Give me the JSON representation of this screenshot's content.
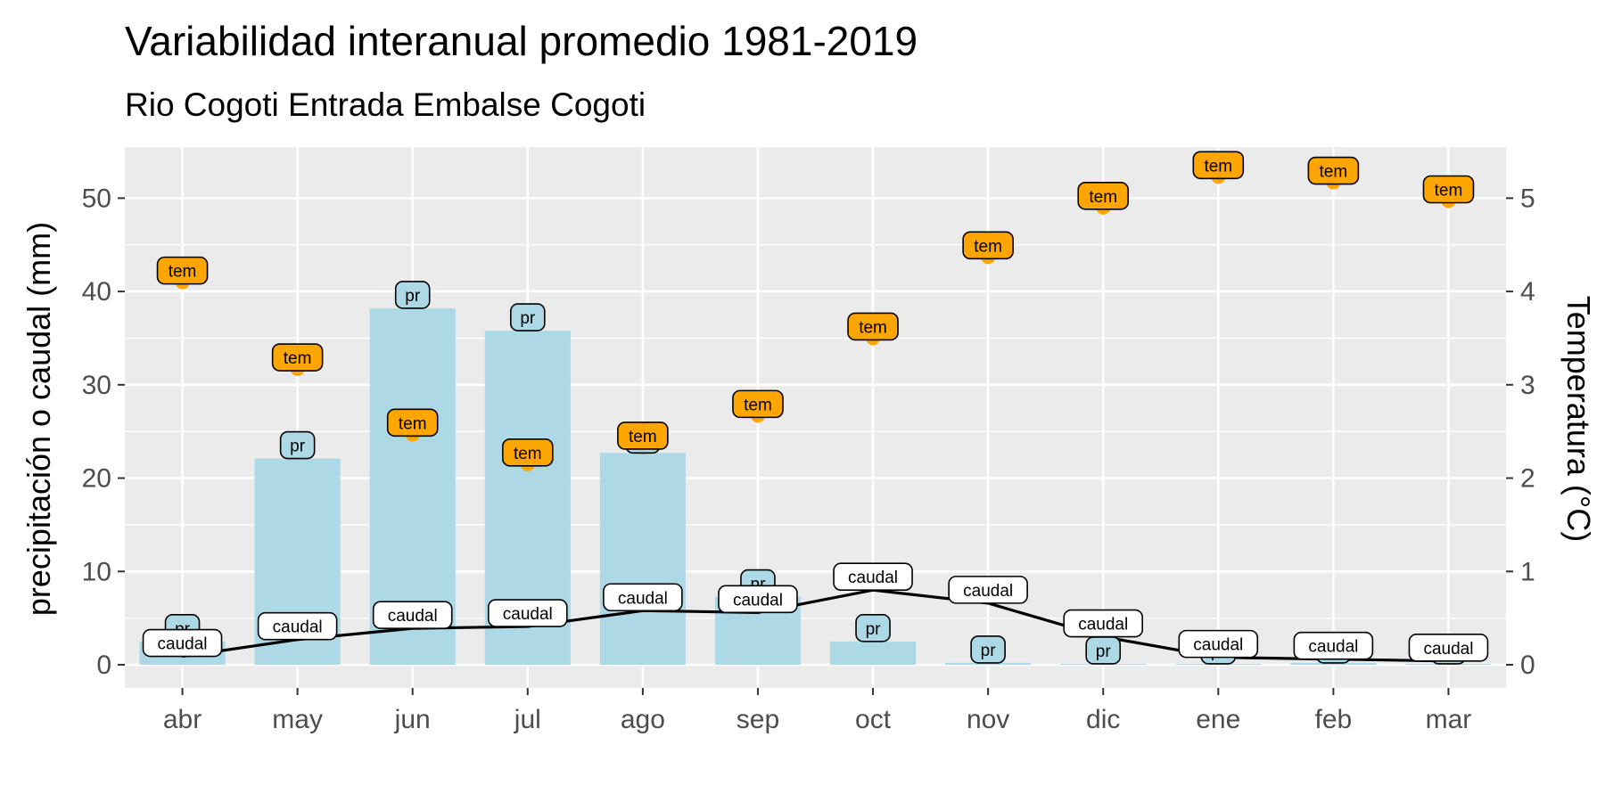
{
  "chart_data": {
    "type": "bar",
    "title": "Variabilidad interanual promedio 1981-2019",
    "subtitle": "Rio Cogoti Entrada Embalse Cogoti",
    "ylabel": "precipitación o caudal (mm)",
    "y2label": "Temperatura (°C)",
    "categories": [
      "abr",
      "may",
      "jun",
      "jul",
      "ago",
      "sep",
      "oct",
      "nov",
      "dic",
      "ene",
      "feb",
      "mar"
    ],
    "ylim": [
      0,
      55
    ],
    "yticks": [
      "0",
      "10",
      "20",
      "30",
      "40",
      "50"
    ],
    "y2lim": [
      0,
      5.5
    ],
    "y2ticks": [
      "0",
      "1",
      "2",
      "3",
      "4",
      "5"
    ],
    "grid": true,
    "series": [
      {
        "name": "pr",
        "kind": "bar",
        "color": "#add8e6",
        "values": [
          2.5,
          22.1,
          38.2,
          35.8,
          22.7,
          7.3,
          2.5,
          0.2,
          0.1,
          0.1,
          0.2,
          0.1
        ]
      },
      {
        "name": "caudal",
        "kind": "line",
        "color": "#000000",
        "values": [
          0.9,
          2.7,
          3.9,
          4.1,
          5.8,
          5.6,
          8.0,
          6.6,
          3.0,
          0.8,
          0.6,
          0.4
        ]
      },
      {
        "name": "tem",
        "kind": "point",
        "axis": "secondary",
        "color": "#ffa500",
        "values": [
          4.1,
          3.17,
          2.47,
          2.15,
          2.33,
          2.67,
          3.5,
          4.37,
          4.9,
          5.23,
          5.17,
          4.97
        ]
      }
    ]
  }
}
